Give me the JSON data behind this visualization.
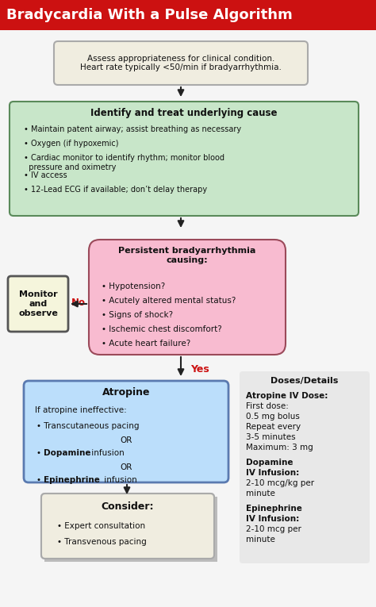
{
  "title": "Bradycardia With a Pulse Algorithm",
  "title_bg": "#cc1111",
  "title_color": "#ffffff",
  "bg_color": "#f5f5f5",
  "box1_text": "Assess appropriateness for clinical condition.\nHeart rate typically <50/min if bradyarrhythmia.",
  "box1_bg": "#f0ede0",
  "box1_border": "#aaaaaa",
  "box2_title": "Identify and treat underlying cause",
  "box2_bullets": [
    "Maintain patent airway; assist breathing as necessary",
    "Oxygen (if hypoxemic)",
    "Cardiac monitor to identify rhythm; monitor blood\n  pressure and oximetry",
    "IV access",
    "12-Lead ECG if available; don’t delay therapy"
  ],
  "box2_bg": "#c8e6c9",
  "box2_border": "#5a8a5a",
  "box3_title": "Persistent bradyarrhythmia\ncausing:",
  "box3_bullets": [
    "Hypotension?",
    "Acutely altered mental status?",
    "Signs of shock?",
    "Ischemic chest discomfort?",
    "Acute heart failure?"
  ],
  "box3_bg": "#f8bbd0",
  "box3_border": "#9b4a5a",
  "monitor_text": "Monitor\nand\nobserve",
  "monitor_bg": "#f5f5dc",
  "monitor_border": "#555555",
  "box4_title": "Atropine",
  "box4_body": "If atropine ineffective:",
  "box4_bullets_bold": [
    "Transcutaneous pacing",
    "Dopamine",
    "Epinephrine"
  ],
  "box4_bullets_normal": [
    " infusion",
    " infusion"
  ],
  "box4_bullets_or": [
    "OR",
    "OR"
  ],
  "box4_bg": "#bbdefb",
  "box4_border": "#5a7ab0",
  "box5_title": "Consider:",
  "box5_bullets": [
    "Expert consultation",
    "Transvenous pacing"
  ],
  "box5_bg": "#f0ede0",
  "box5_border": "#aaaaaa",
  "doses_title": "Doses/Details",
  "doses_bg": "#e8e8e8",
  "doses_border": "#cccccc",
  "doses_content": [
    {
      "bold": "Atropine IV Dose:",
      "normal": "First dose:\n0.5 mg bolus\nRepeat every\n3-5 minutes\nMaximum: 3 mg"
    },
    {
      "bold": "Dopamine\nIV Infusion:",
      "normal": "2-10 mcg/kg per\nminute"
    },
    {
      "bold": "Epinephrine\nIV Infusion:",
      "normal": "2-10 mcg per\nminute"
    }
  ],
  "yes_color": "#cc1111",
  "no_color": "#cc1111",
  "arrow_color": "#222222"
}
